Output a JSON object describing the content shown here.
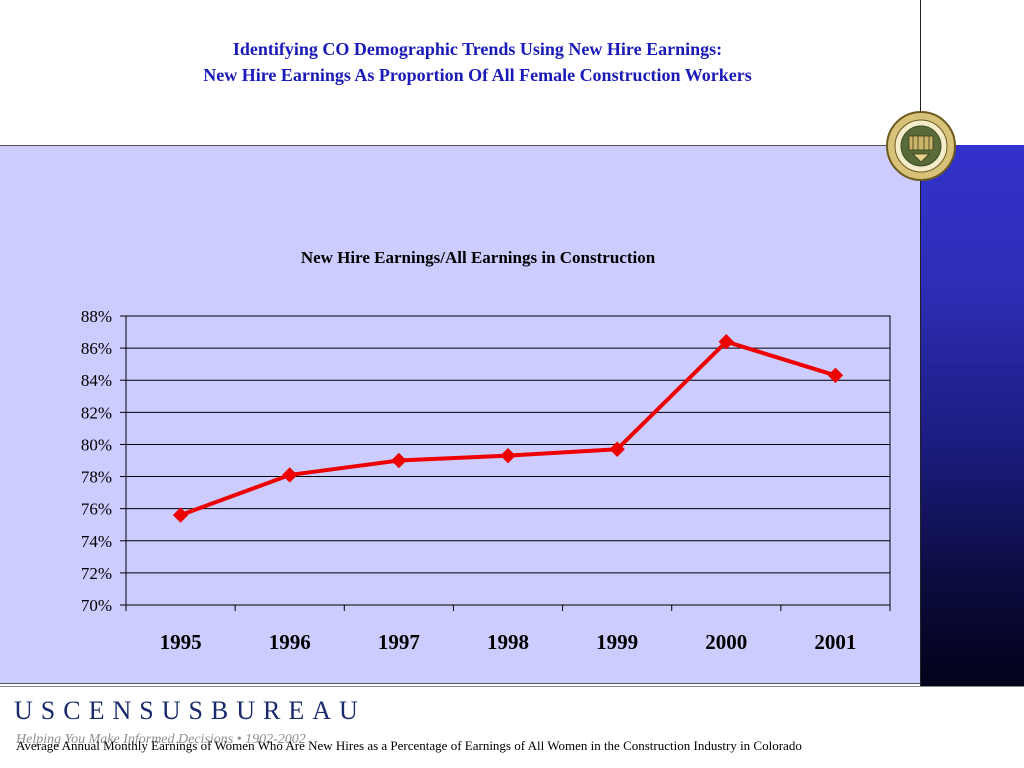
{
  "slide": {
    "title_line1": "Identifying CO Demographic Trends Using New Hire Earnings:",
    "title_line2": "New Hire Earnings As Proportion Of All Female Construction Workers",
    "footnote": "Average Annual Monthly Earnings of Women Who Are New Hires as a Percentage of Earnings of All Women in the Construction Industry in Colorado"
  },
  "branding": {
    "logo_text": "USCENSUSBUREAU",
    "tagline": "Helping You Make Informed Decisions • 1902-2002",
    "seal_text": "U.S. DEPARTMENT OF COMMERCE BUREAU OF THE CENSUS"
  },
  "colors": {
    "title": "#1a1ab8",
    "plot_bg": "#ccccff",
    "series": "#ee0000"
  },
  "chart_data": {
    "type": "line",
    "title": "New Hire Earnings/All Earnings in Construction",
    "xlabel": "",
    "ylabel": "",
    "categories": [
      "1995",
      "1996",
      "1997",
      "1998",
      "1999",
      "2000",
      "2001"
    ],
    "series": [
      {
        "values": [
          75.6,
          78.1,
          79.0,
          79.3,
          79.7,
          86.4,
          84.3
        ]
      }
    ],
    "ylim": [
      70,
      88
    ],
    "yticks": [
      70,
      72,
      74,
      76,
      78,
      80,
      82,
      84,
      86,
      88
    ],
    "ytick_labels": [
      "70%",
      "72%",
      "74%",
      "76%",
      "78%",
      "80%",
      "82%",
      "84%",
      "86%",
      "88%"
    ],
    "grid": true,
    "legend": "none",
    "marker": "diamond"
  }
}
